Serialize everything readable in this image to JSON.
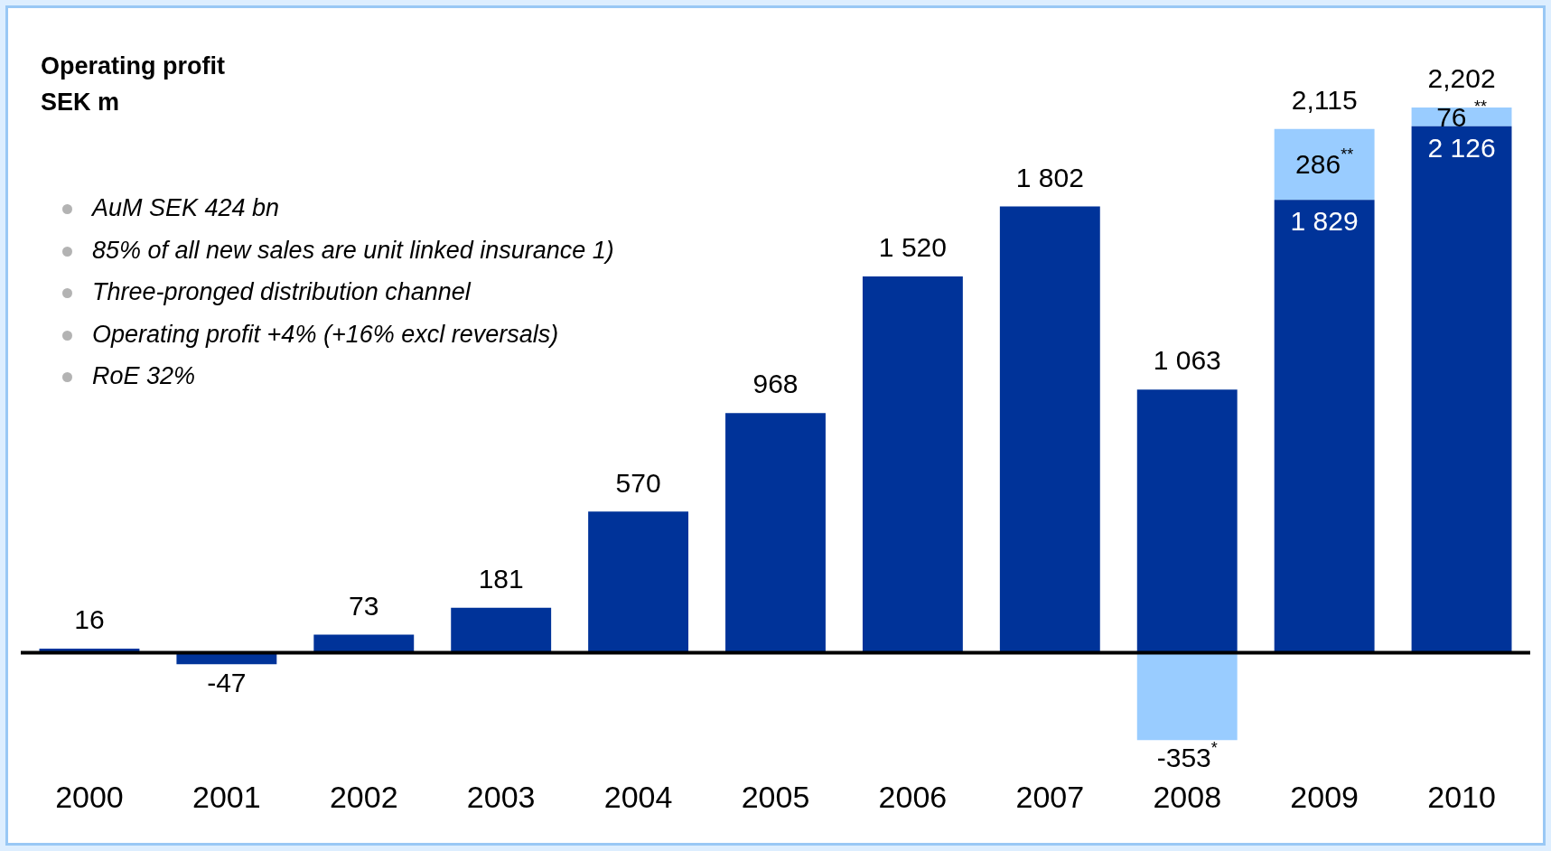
{
  "chart_data": {
    "type": "bar",
    "title": "Operating profit",
    "subtitle": "SEK m",
    "categories": [
      "2000",
      "2001",
      "2002",
      "2003",
      "2004",
      "2005",
      "2006",
      "2007",
      "2008",
      "2009",
      "2010"
    ],
    "stacked": true,
    "series": [
      {
        "color": "#003399",
        "values": [
          16,
          -47,
          73,
          181,
          570,
          968,
          1520,
          1802,
          1063,
          1829,
          2126
        ],
        "value_labels": [
          "16",
          "-47",
          "73",
          "181",
          "570",
          "968",
          "1 520",
          "1 802",
          "1 063",
          "1 829",
          "2 126"
        ]
      },
      {
        "color": "#99ccff",
        "values": [
          null,
          null,
          null,
          null,
          null,
          null,
          null,
          null,
          -353,
          286,
          76
        ],
        "value_labels": [
          null,
          null,
          null,
          null,
          null,
          null,
          null,
          null,
          "-353$^{*}$",
          "286$^{**}$",
          "76 $^{**}$"
        ]
      }
    ],
    "totals": [
      null,
      null,
      null,
      null,
      null,
      null,
      null,
      null,
      null,
      "2,115",
      "2,202"
    ],
    "ref_lines": [
      {
        "axis": "y",
        "value": 0,
        "color": "#000000"
      }
    ],
    "annotations": [
      "AuM SEK 424 bn",
      "85% of all new sales are unit linked insurance 1)",
      "Three-pronged distribution channel",
      "Operating profit +4% (+16% excl reversals)",
      "RoE 32%"
    ],
    "legend": false,
    "grid": false
  }
}
